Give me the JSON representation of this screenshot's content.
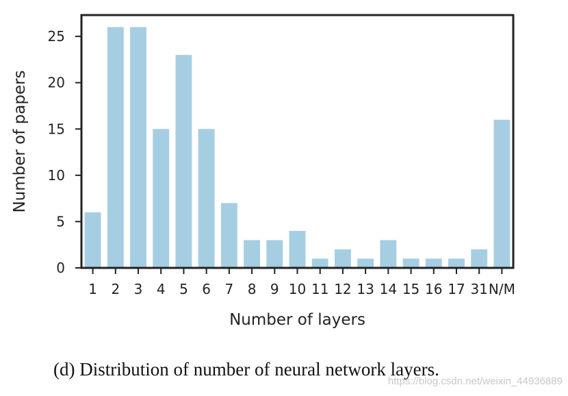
{
  "caption": "(d) Distribution of number of neural network layers.",
  "watermark": "https://blog.csdn.net/weixin_44936889",
  "colors": {
    "bar": "#a6cee3",
    "axis": "#222222"
  },
  "chart_data": {
    "type": "bar",
    "categories": [
      "1",
      "2",
      "3",
      "4",
      "5",
      "6",
      "7",
      "8",
      "9",
      "10",
      "11",
      "12",
      "13",
      "14",
      "15",
      "16",
      "17",
      "31",
      "N/M"
    ],
    "values": [
      6,
      26,
      26,
      15,
      23,
      15,
      7,
      3,
      3,
      4,
      1,
      2,
      1,
      3,
      1,
      1,
      1,
      2,
      16
    ],
    "xlabel": "Number of layers",
    "ylabel": "Number of papers",
    "ylim": [
      0,
      27.3
    ],
    "yticks": [
      0,
      5,
      10,
      15,
      20,
      25
    ],
    "grid": false
  }
}
